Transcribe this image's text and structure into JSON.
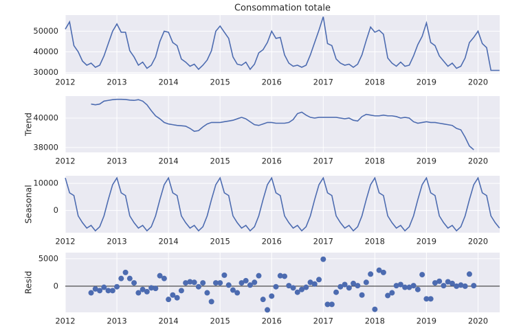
{
  "x": [
    2012,
    2012.083,
    2012.167,
    2012.25,
    2012.333,
    2012.417,
    2012.5,
    2012.583,
    2012.667,
    2012.75,
    2012.833,
    2012.917,
    2013,
    2013.083,
    2013.167,
    2013.25,
    2013.333,
    2013.417,
    2013.5,
    2013.583,
    2013.667,
    2013.75,
    2013.833,
    2013.917,
    2014,
    2014.083,
    2014.167,
    2014.25,
    2014.333,
    2014.417,
    2014.5,
    2014.583,
    2014.667,
    2014.75,
    2014.833,
    2014.917,
    2015,
    2015.083,
    2015.167,
    2015.25,
    2015.333,
    2015.417,
    2015.5,
    2015.583,
    2015.667,
    2015.75,
    2015.833,
    2015.917,
    2016,
    2016.083,
    2016.167,
    2016.25,
    2016.333,
    2016.417,
    2016.5,
    2016.583,
    2016.667,
    2016.75,
    2016.833,
    2016.917,
    2017,
    2017.083,
    2017.167,
    2017.25,
    2017.333,
    2017.417,
    2017.5,
    2017.583,
    2017.667,
    2017.75,
    2017.833,
    2017.917,
    2018,
    2018.083,
    2018.167,
    2018.25,
    2018.333,
    2018.417,
    2018.5,
    2018.583,
    2018.667,
    2018.75,
    2018.833,
    2018.917,
    2019,
    2019.083,
    2019.167,
    2019.25,
    2019.333,
    2019.417,
    2019.5,
    2019.583,
    2019.667,
    2019.75,
    2019.833,
    2019.917,
    2020,
    2020.083,
    2020.167,
    2020.25,
    2020.333,
    2020.417
  ],
  "chart_data": [
    {
      "type": "line",
      "title": "Consommation totale",
      "color": "#4c6bb0",
      "xlim": [
        2012,
        2020.42
      ],
      "xticks": [
        2012,
        2013,
        2014,
        2015,
        2016,
        2017,
        2018,
        2019,
        2020
      ],
      "ylim": [
        29500,
        57800
      ],
      "yticks": [
        30000,
        40000,
        50000
      ],
      "grid": true,
      "values": [
        51000,
        54500,
        43000,
        40000,
        35500,
        33500,
        34500,
        32500,
        33500,
        38000,
        44000,
        50000,
        53500,
        49500,
        49500,
        40500,
        37500,
        33500,
        35000,
        32000,
        33500,
        37500,
        45000,
        50000,
        49500,
        44500,
        43000,
        36500,
        35000,
        33000,
        34000,
        31500,
        33500,
        36000,
        40500,
        50000,
        52500,
        49500,
        46500,
        37500,
        34000,
        33500,
        35000,
        31500,
        34000,
        39500,
        41000,
        44500,
        50000,
        46500,
        47000,
        38500,
        34500,
        33000,
        33500,
        32500,
        33500,
        38500,
        44500,
        50500,
        57000,
        44000,
        43000,
        36500,
        34500,
        33500,
        34000,
        32500,
        34000,
        38500,
        45500,
        52000,
        49500,
        50500,
        48500,
        37000,
        34500,
        33000,
        35000,
        33000,
        33500,
        38000,
        43500,
        47500,
        54000,
        44500,
        43000,
        38000,
        35500,
        33000,
        34500,
        32000,
        33000,
        37000,
        44500,
        47000,
        50000,
        44000,
        42000,
        31000,
        31000,
        31000
      ]
    },
    {
      "type": "line",
      "ylabel": "Trend",
      "color": "#4c6bb0",
      "xlim": [
        2012,
        2020.42
      ],
      "xticks": [
        2012,
        2013,
        2014,
        2015,
        2016,
        2017,
        2018,
        2019,
        2020
      ],
      "ylim": [
        37670,
        41490
      ],
      "yticks": [
        38000,
        40000
      ],
      "grid": true,
      "values": [
        null,
        null,
        null,
        null,
        null,
        null,
        40950,
        40900,
        40950,
        41150,
        41200,
        41250,
        41270,
        41270,
        41260,
        41220,
        41200,
        41250,
        41150,
        40900,
        40500,
        40150,
        39950,
        39700,
        39600,
        39550,
        39500,
        39480,
        39450,
        39300,
        39100,
        39150,
        39400,
        39600,
        39700,
        39700,
        39700,
        39750,
        39800,
        39850,
        39950,
        40050,
        39950,
        39750,
        39550,
        39500,
        39600,
        39700,
        39700,
        39650,
        39650,
        39650,
        39700,
        39900,
        40300,
        40400,
        40200,
        40050,
        40000,
        40050,
        40050,
        40050,
        40050,
        40050,
        40000,
        39950,
        40000,
        39850,
        39800,
        40100,
        40250,
        40200,
        40150,
        40150,
        40200,
        40150,
        40150,
        40100,
        40000,
        40050,
        40000,
        39750,
        39650,
        39700,
        39750,
        39700,
        39700,
        39650,
        39600,
        39550,
        39500,
        39300,
        39200,
        38700,
        38100,
        37850,
        null,
        null,
        null,
        null,
        null,
        null
      ]
    },
    {
      "type": "line",
      "ylabel": "Seasonal",
      "color": "#4c6bb0",
      "xlim": [
        2012,
        2020.42
      ],
      "xticks": [
        2012,
        2013,
        2014,
        2015,
        2016,
        2017,
        2018,
        2019,
        2020
      ],
      "ylim": [
        -8200,
        12800
      ],
      "yticks": [
        0,
        10000
      ],
      "grid": true,
      "values": [
        12000,
        6500,
        5500,
        -2000,
        -4500,
        -6500,
        -5500,
        -7500,
        -6000,
        -2000,
        4000,
        9500,
        12000,
        6500,
        5500,
        -2000,
        -4500,
        -6500,
        -5500,
        -7500,
        -6000,
        -2000,
        4000,
        9500,
        12000,
        6500,
        5500,
        -2000,
        -4500,
        -6500,
        -5500,
        -7500,
        -6000,
        -2000,
        4000,
        9500,
        12000,
        6500,
        5500,
        -2000,
        -4500,
        -6500,
        -5500,
        -7500,
        -6000,
        -2000,
        4000,
        9500,
        12000,
        6500,
        5500,
        -2000,
        -4500,
        -6500,
        -5500,
        -7500,
        -6000,
        -2000,
        4000,
        9500,
        12000,
        6500,
        5500,
        -2000,
        -4500,
        -6500,
        -5500,
        -7500,
        -6000,
        -2000,
        4000,
        9500,
        12000,
        6500,
        5500,
        -2000,
        -4500,
        -6500,
        -5500,
        -7500,
        -6000,
        -2000,
        4000,
        9500,
        12000,
        6500,
        5500,
        -2000,
        -4500,
        -6500,
        -5500,
        -7500,
        -6000,
        -2000,
        4000,
        9500,
        12000,
        6500,
        5500,
        -2000,
        -4500,
        -6500
      ]
    },
    {
      "type": "scatter",
      "ylabel": "Resid",
      "color": "#4c6bb0",
      "xlim": [
        2012,
        2020.42
      ],
      "xticks": [
        2012,
        2013,
        2014,
        2015,
        2016,
        2017,
        2018,
        2019,
        2020
      ],
      "ylim": [
        -4750,
        6100
      ],
      "yticks": [
        0,
        5000
      ],
      "grid": true,
      "values": [
        null,
        null,
        null,
        null,
        null,
        null,
        -1200,
        -500,
        -800,
        -200,
        -800,
        -800,
        -100,
        1400,
        2500,
        1400,
        600,
        -1200,
        -600,
        -1000,
        -300,
        -400,
        1900,
        1400,
        -2400,
        -1600,
        -2100,
        -800,
        600,
        800,
        700,
        -100,
        600,
        -1200,
        -2800,
        600,
        600,
        2000,
        200,
        -700,
        -1200,
        600,
        1000,
        200,
        700,
        1900,
        -2400,
        -4300,
        -1800,
        -100,
        1900,
        1800,
        100,
        -300,
        -1100,
        -600,
        -200,
        700,
        400,
        1200,
        4900,
        -3300,
        -3300,
        -1100,
        -100,
        300,
        -300,
        500,
        100,
        -1600,
        700,
        2200,
        -4200,
        2900,
        2500,
        -1700,
        -1200,
        100,
        300,
        -200,
        -200,
        100,
        -600,
        2100,
        -2300,
        -2300,
        600,
        900,
        100,
        800,
        500,
        0,
        200,
        0,
        2200,
        100,
        null,
        null,
        null,
        null,
        null,
        null
      ]
    }
  ]
}
